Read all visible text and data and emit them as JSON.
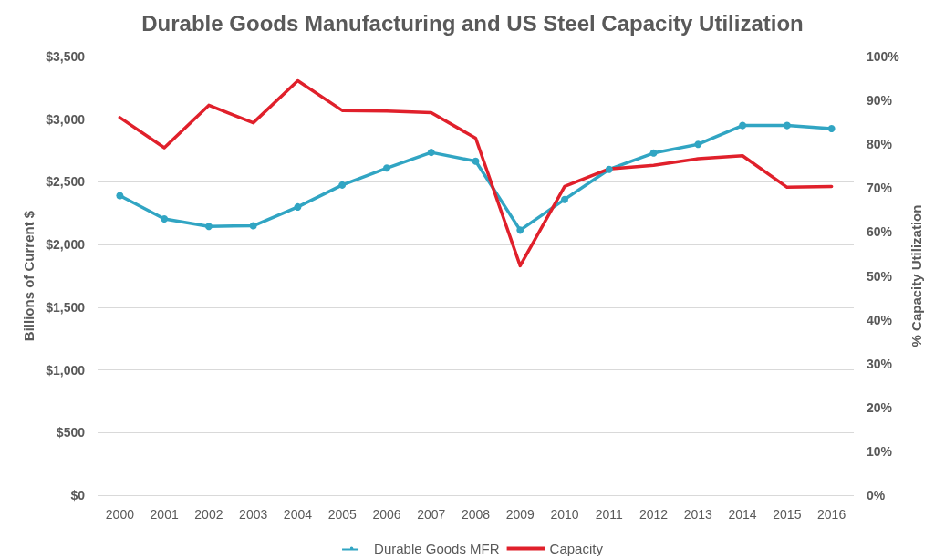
{
  "chart_data": {
    "type": "line",
    "title": "Durable Goods Manufacturing and US Steel Capacity Utilization",
    "ylabel": "Billions of Current $",
    "y2label": "% Capacity Utilization",
    "categories": [
      "2000",
      "2001",
      "2002",
      "2003",
      "2004",
      "2005",
      "2006",
      "2007",
      "2008",
      "2009",
      "2010",
      "2011",
      "2012",
      "2013",
      "2014",
      "2015",
      "2016"
    ],
    "series": [
      {
        "name": "Durable Goods MFR",
        "color": "#31a5c3",
        "marker": "circle",
        "values": [
          2390,
          2205,
          2145,
          2150,
          2300,
          2475,
          2610,
          2735,
          2665,
          2115,
          2360,
          2600,
          2730,
          2800,
          2950,
          2950,
          2925
        ]
      },
      {
        "name": "Capacity",
        "color": "#e0202b",
        "marker": "none",
        "axis": "y2",
        "values": [
          86.1,
          79.2,
          88.9,
          84.9,
          94.5,
          87.7,
          87.6,
          87.2,
          81.4,
          52.3,
          70.4,
          74.4,
          75.2,
          76.7,
          77.4,
          70.2,
          70.4
        ]
      }
    ],
    "ylim": [
      0,
      3500
    ],
    "yticks": [
      {
        "value": 0,
        "label": "$0"
      },
      {
        "value": 500,
        "label": "$500"
      },
      {
        "value": 1000,
        "label": "$1,000"
      },
      {
        "value": 1500,
        "label": "$1,500"
      },
      {
        "value": 2000,
        "label": "$2,000"
      },
      {
        "value": 2500,
        "label": "$2,500"
      },
      {
        "value": 3000,
        "label": "$3,000"
      },
      {
        "value": 3500,
        "label": "$3,500"
      }
    ],
    "y2lim": [
      0,
      100
    ],
    "y2ticks": [
      {
        "value": 0,
        "label": "0%"
      },
      {
        "value": 10,
        "label": "10%"
      },
      {
        "value": 20,
        "label": "20%"
      },
      {
        "value": 30,
        "label": "30%"
      },
      {
        "value": 40,
        "label": "40%"
      },
      {
        "value": 50,
        "label": "50%"
      },
      {
        "value": 60,
        "label": "60%"
      },
      {
        "value": 70,
        "label": "70%"
      },
      {
        "value": 80,
        "label": "80%"
      },
      {
        "value": 90,
        "label": "90%"
      },
      {
        "value": 100,
        "label": "100%"
      }
    ],
    "grid": "y",
    "legend": "bottom",
    "line_style": "solid"
  }
}
